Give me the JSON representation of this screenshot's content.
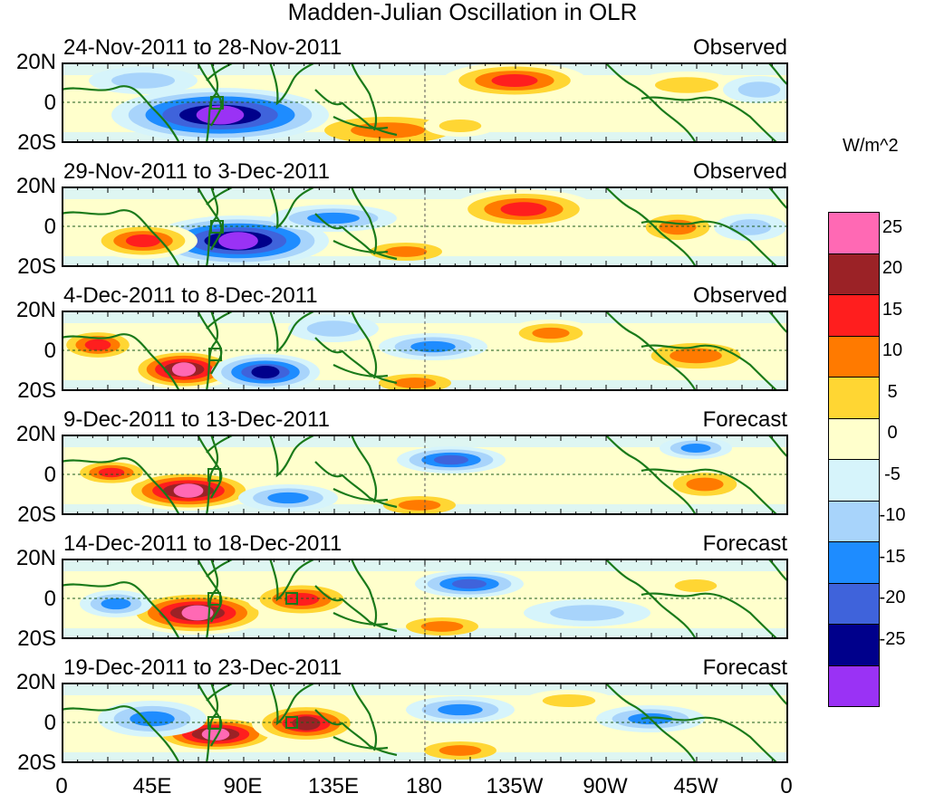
{
  "title": "Madden-Julian Oscillation in OLR",
  "units": "W/m^2",
  "y_ticks": [
    "20N",
    "0",
    "20S"
  ],
  "x_ticks": [
    "0",
    "45E",
    "90E",
    "135E",
    "180",
    "135W",
    "90W",
    "45W",
    "0"
  ],
  "panels": [
    {
      "dates": "24-Nov-2011 to 28-Nov-2011",
      "kind": "Observed"
    },
    {
      "dates": "29-Nov-2011 to 3-Dec-2011",
      "kind": "Observed"
    },
    {
      "dates": "4-Dec-2011 to 8-Dec-2011",
      "kind": "Observed"
    },
    {
      "dates": "9-Dec-2011 to 13-Dec-2011",
      "kind": "Forecast"
    },
    {
      "dates": "14-Dec-2011 to 18-Dec-2011",
      "kind": "Forecast"
    },
    {
      "dates": "19-Dec-2011 to 23-Dec-2011",
      "kind": "Forecast"
    }
  ],
  "legend": {
    "colors": [
      "#ff69b4",
      "#9b2226",
      "#ff1e1e",
      "#ff7a00",
      "#ffd633",
      "#ffffcc",
      "#d6f4fb",
      "#a8d4fb",
      "#1e8cff",
      "#3f63db",
      "#00008b",
      "#9a32f5"
    ],
    "labels": [
      "25",
      "20",
      "15",
      "10",
      "5",
      "0",
      "-5",
      "-10",
      "-15",
      "-20",
      "-25"
    ]
  }
}
